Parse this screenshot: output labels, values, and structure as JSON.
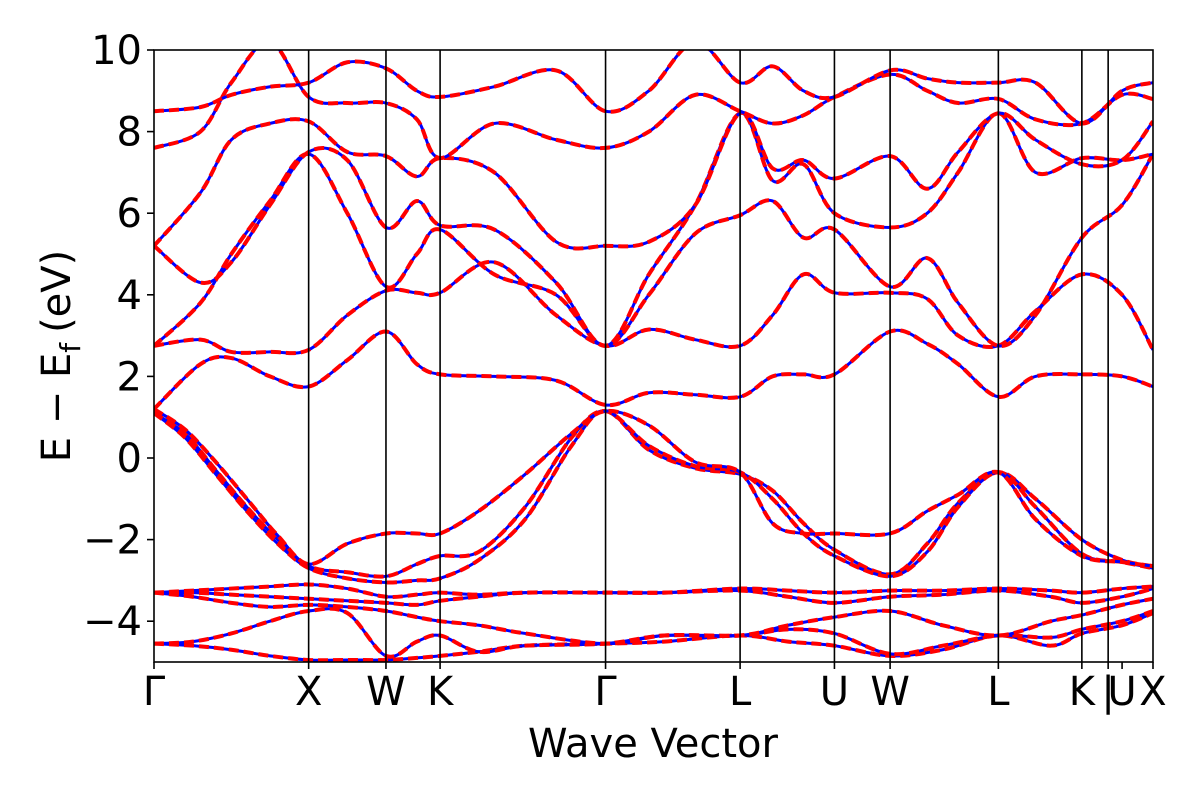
{
  "chart_data": {
    "type": "line",
    "title": "",
    "xlabel": "Wave Vector",
    "ylabel_main": "E − E",
    "ylabel_sub": "f",
    "ylabel_unit": "(eV)",
    "ylim": [
      -5,
      10
    ],
    "yticks": [
      {
        "value": -4,
        "label": "−4"
      },
      {
        "value": -2,
        "label": "−2"
      },
      {
        "value": 0,
        "label": "0"
      },
      {
        "value": 2,
        "label": "2"
      },
      {
        "value": 4,
        "label": "4"
      },
      {
        "value": 6,
        "label": "6"
      },
      {
        "value": 8,
        "label": "8"
      },
      {
        "value": 10,
        "label": "10"
      }
    ],
    "xlim": [
      0,
      10.47
    ],
    "kpoints": [
      {
        "x": 0.0,
        "label": "Γ"
      },
      {
        "x": 1.0,
        "label": "X"
      },
      {
        "x": 1.5,
        "label": "W"
      },
      {
        "x": 1.85,
        "label": "K"
      },
      {
        "x": 2.92,
        "label": "Γ"
      },
      {
        "x": 3.79,
        "label": "L"
      },
      {
        "x": 4.4,
        "label": "U"
      },
      {
        "x": 4.76,
        "label": "W"
      },
      {
        "x": 5.46,
        "label": "L"
      },
      {
        "x": 6.0,
        "label": "K"
      },
      {
        "x": 6.17,
        "label": "|"
      },
      {
        "x": 6.26,
        "label": "U"
      },
      {
        "x": 6.46,
        "label": "X"
      }
    ],
    "grid": false,
    "series_style": {
      "solid_color": "#ff0000",
      "dashed_color": "#0000ff"
    },
    "bands": [
      {
        "x": [
          0,
          0.5,
          1.0,
          1.25,
          1.5,
          1.85,
          2.2,
          2.92,
          3.3,
          3.79,
          4.1,
          4.4,
          4.76,
          5.1,
          5.46,
          5.8,
          6.0,
          6.26,
          6.46
        ],
        "y": [
          -5.1,
          -5.1,
          -5.1,
          -5.1,
          -5.1,
          -5.1,
          -5.1,
          -5.1,
          -5.1,
          -5.1,
          -5.1,
          -5.1,
          -5.1,
          -5.1,
          -5.1,
          -5.1,
          -5.1,
          -5.1,
          -5.1
        ]
      },
      {
        "x": [
          0,
          0.25,
          0.5,
          0.75,
          1.0,
          1.25,
          1.5,
          1.7,
          1.85,
          2.1,
          2.4,
          2.92,
          3.3,
          3.79,
          4.1,
          4.4,
          4.76,
          5.1,
          5.46,
          5.8,
          6.0,
          6.26,
          6.46
        ],
        "y": [
          -4.55,
          -4.6,
          -4.7,
          -4.85,
          -4.95,
          -4.95,
          -4.95,
          -4.9,
          -4.85,
          -4.75,
          -4.6,
          -4.55,
          -4.5,
          -4.35,
          -4.5,
          -4.6,
          -4.85,
          -4.7,
          -4.35,
          -4.6,
          -4.3,
          -4.1,
          -3.8
        ]
      },
      {
        "x": [
          0,
          0.25,
          0.5,
          0.75,
          1.0,
          1.25,
          1.5,
          1.7,
          1.85,
          2.1,
          2.4,
          2.92,
          3.3,
          3.79,
          4.1,
          4.4,
          4.76,
          5.1,
          5.46,
          5.8,
          6.0,
          6.26,
          6.46
        ],
        "y": [
          -4.55,
          -4.5,
          -4.3,
          -4.0,
          -3.75,
          -3.8,
          -4.85,
          -4.5,
          -4.35,
          -4.75,
          -4.6,
          -4.55,
          -4.35,
          -4.35,
          -4.2,
          -4.3,
          -4.8,
          -4.6,
          -4.35,
          -4.4,
          -4.2,
          -4.0,
          -3.75
        ]
      },
      {
        "x": [
          0,
          0.25,
          0.5,
          0.75,
          1.0,
          1.25,
          1.5,
          1.7,
          1.85,
          2.1,
          2.4,
          2.92,
          3.3,
          3.79,
          4.1,
          4.4,
          4.76,
          5.1,
          5.46,
          5.8,
          6.0,
          6.26,
          6.46
        ],
        "y": [
          -3.3,
          -3.4,
          -3.55,
          -3.65,
          -3.6,
          -3.65,
          -3.75,
          -3.9,
          -4.0,
          -4.1,
          -4.3,
          -4.55,
          -4.35,
          -4.35,
          -4.1,
          -3.9,
          -3.75,
          -4.1,
          -4.35,
          -4.0,
          -3.85,
          -3.6,
          -3.45
        ]
      },
      {
        "x": [
          0,
          0.25,
          0.5,
          0.75,
          1.0,
          1.25,
          1.5,
          1.7,
          1.85,
          2.1,
          2.4,
          2.92,
          3.3,
          3.79,
          4.1,
          4.4,
          4.76,
          5.1,
          5.46,
          5.8,
          6.0,
          6.26,
          6.46
        ],
        "y": [
          -3.3,
          -3.3,
          -3.35,
          -3.4,
          -3.45,
          -3.5,
          -3.55,
          -3.6,
          -3.5,
          -3.4,
          -3.3,
          -3.3,
          -3.3,
          -3.25,
          -3.4,
          -3.55,
          -3.4,
          -3.35,
          -3.25,
          -3.4,
          -3.55,
          -3.4,
          -3.2
        ]
      },
      {
        "x": [
          0,
          0.25,
          0.5,
          0.75,
          1.0,
          1.25,
          1.5,
          1.7,
          1.85,
          2.1,
          2.4,
          2.92,
          3.3,
          3.79,
          4.1,
          4.4,
          4.76,
          5.1,
          5.46,
          5.8,
          6.0,
          6.26,
          6.46
        ],
        "y": [
          -3.3,
          -3.25,
          -3.2,
          -3.15,
          -3.1,
          -3.2,
          -3.4,
          -3.35,
          -3.3,
          -3.35,
          -3.3,
          -3.3,
          -3.3,
          -3.2,
          -3.25,
          -3.3,
          -3.25,
          -3.25,
          -3.2,
          -3.25,
          -3.3,
          -3.2,
          -3.15
        ]
      },
      {
        "x": [
          0,
          0.2,
          0.4,
          0.6,
          0.8,
          1.0,
          1.25,
          1.5,
          1.7,
          1.85,
          2.1,
          2.4,
          2.7,
          2.92,
          3.2,
          3.5,
          3.79,
          4.0,
          4.2,
          4.4,
          4.76,
          5.0,
          5.2,
          5.46,
          5.7,
          6.0,
          6.26,
          6.46
        ],
        "y": [
          1.1,
          0.5,
          -0.4,
          -1.3,
          -2.1,
          -2.7,
          -2.95,
          -3.05,
          -3.0,
          -2.95,
          -2.5,
          -1.5,
          0.3,
          1.15,
          0.2,
          -0.25,
          -0.4,
          -0.8,
          -1.6,
          -2.25,
          -2.85,
          -2.1,
          -1.1,
          -0.35,
          -1.0,
          -2.0,
          -2.5,
          -2.65
        ]
      },
      {
        "x": [
          0,
          0.2,
          0.4,
          0.6,
          0.8,
          1.0,
          1.25,
          1.5,
          1.7,
          1.85,
          2.1,
          2.4,
          2.7,
          2.92,
          3.2,
          3.5,
          3.79,
          4.0,
          4.2,
          4.4,
          4.76,
          5.0,
          5.2,
          5.46,
          5.7,
          6.0,
          6.26,
          6.46
        ],
        "y": [
          1.1,
          0.6,
          -0.3,
          -1.2,
          -2.0,
          -2.65,
          -2.8,
          -2.9,
          -2.6,
          -2.4,
          -2.3,
          -1.2,
          0.5,
          1.15,
          0.3,
          -0.2,
          -0.35,
          -1.0,
          -1.85,
          -2.4,
          -2.9,
          -2.3,
          -1.2,
          -0.35,
          -1.2,
          -2.35,
          -2.55,
          -2.7
        ]
      },
      {
        "x": [
          0,
          0.2,
          0.4,
          0.6,
          0.8,
          1.0,
          1.25,
          1.5,
          1.7,
          1.85,
          2.1,
          2.4,
          2.7,
          2.92,
          3.2,
          3.5,
          3.79,
          4.0,
          4.2,
          4.4,
          4.76,
          5.0,
          5.2,
          5.46,
          5.7,
          6.0,
          6.26,
          6.46
        ],
        "y": [
          1.2,
          0.7,
          -0.1,
          -1.0,
          -1.9,
          -2.6,
          -2.1,
          -1.85,
          -1.85,
          -1.85,
          -1.3,
          -0.4,
          0.6,
          1.15,
          0.8,
          -0.1,
          -0.35,
          -1.6,
          -1.85,
          -1.85,
          -1.85,
          -1.3,
          -0.9,
          -0.35,
          -1.5,
          -2.4,
          -2.55,
          -2.65
        ]
      },
      {
        "x": [
          0,
          0.3,
          0.5,
          0.75,
          1.0,
          1.25,
          1.5,
          1.7,
          1.85,
          2.2,
          2.6,
          2.92,
          3.2,
          3.5,
          3.79,
          4.0,
          4.2,
          4.4,
          4.76,
          5.0,
          5.2,
          5.46,
          5.7,
          6.0,
          6.26,
          6.46
        ],
        "y": [
          1.2,
          2.3,
          2.45,
          2.0,
          1.75,
          2.4,
          3.1,
          2.3,
          2.05,
          2.0,
          1.9,
          1.3,
          1.6,
          1.55,
          1.5,
          2.0,
          2.05,
          2.05,
          3.1,
          2.8,
          2.3,
          1.5,
          2.0,
          2.05,
          2.0,
          1.75
        ]
      },
      {
        "x": [
          0,
          0.3,
          0.5,
          0.75,
          1.0,
          1.25,
          1.5,
          1.7,
          1.85,
          2.2,
          2.6,
          2.92,
          3.2,
          3.5,
          3.79,
          4.0,
          4.2,
          4.4,
          4.76,
          5.0,
          5.2,
          5.46,
          5.7,
          6.0,
          6.26,
          6.46
        ],
        "y": [
          2.75,
          2.9,
          2.6,
          2.6,
          2.65,
          3.5,
          4.1,
          4.05,
          4.05,
          4.8,
          3.5,
          2.75,
          3.15,
          2.9,
          2.75,
          3.5,
          4.5,
          4.05,
          4.05,
          3.9,
          3.0,
          2.75,
          3.6,
          4.5,
          4.0,
          2.65
        ]
      },
      {
        "x": [
          0,
          0.3,
          0.5,
          0.75,
          1.0,
          1.25,
          1.5,
          1.7,
          1.85,
          2.2,
          2.6,
          2.92,
          3.2,
          3.5,
          3.79,
          4.0,
          4.2,
          4.4,
          4.76,
          5.0,
          5.2,
          5.46,
          5.7,
          6.0,
          6.26,
          6.46
        ],
        "y": [
          2.75,
          3.8,
          5.0,
          6.3,
          7.45,
          6.0,
          4.2,
          5.0,
          5.6,
          4.5,
          4.0,
          2.75,
          4.0,
          5.5,
          5.95,
          6.3,
          5.4,
          5.6,
          4.2,
          4.9,
          3.8,
          2.75,
          3.5,
          5.4,
          6.2,
          7.45
        ]
      },
      {
        "x": [
          0,
          0.3,
          0.5,
          0.75,
          1.0,
          1.25,
          1.5,
          1.7,
          1.85,
          2.2,
          2.6,
          2.92,
          3.2,
          3.5,
          3.79,
          4.0,
          4.2,
          4.4,
          4.76,
          5.0,
          5.2,
          5.46,
          5.7,
          6.0,
          6.26,
          6.46
        ],
        "y": [
          5.2,
          4.3,
          4.8,
          6.2,
          7.5,
          7.3,
          5.65,
          6.3,
          5.7,
          5.6,
          4.3,
          2.75,
          4.5,
          6.2,
          8.45,
          6.8,
          7.2,
          6.0,
          5.65,
          6.0,
          7.0,
          8.45,
          7.0,
          7.35,
          7.3,
          7.45
        ]
      },
      {
        "x": [
          0,
          0.3,
          0.5,
          0.75,
          1.0,
          1.25,
          1.5,
          1.7,
          1.85,
          2.2,
          2.6,
          2.92,
          3.2,
          3.5,
          3.79,
          4.0,
          4.2,
          4.4,
          4.76,
          5.0,
          5.2,
          5.46,
          5.7,
          6.0,
          6.26,
          6.46
        ],
        "y": [
          5.2,
          6.5,
          7.8,
          8.2,
          8.25,
          7.5,
          7.4,
          6.9,
          7.35,
          7.0,
          5.3,
          5.2,
          5.3,
          6.2,
          8.45,
          7.1,
          7.3,
          6.85,
          7.4,
          6.6,
          7.5,
          8.45,
          7.8,
          7.2,
          7.3,
          8.25
        ]
      },
      {
        "x": [
          0,
          0.3,
          0.5,
          0.75,
          1.0,
          1.25,
          1.5,
          1.7,
          1.85,
          2.2,
          2.6,
          2.92,
          3.2,
          3.5,
          3.79,
          4.0,
          4.2,
          4.4,
          4.76,
          5.0,
          5.2,
          5.46,
          5.7,
          6.0,
          6.26,
          6.46
        ],
        "y": [
          7.6,
          8.0,
          9.2,
          10.2,
          8.85,
          8.7,
          8.7,
          8.3,
          7.35,
          8.2,
          7.8,
          7.6,
          8.0,
          8.9,
          8.5,
          8.2,
          8.4,
          8.85,
          9.4,
          9.0,
          8.7,
          8.8,
          8.3,
          8.2,
          8.9,
          8.8
        ]
      },
      {
        "x": [
          0,
          0.3,
          0.5,
          0.75,
          1.0,
          1.25,
          1.5,
          1.7,
          1.85,
          2.2,
          2.6,
          2.92,
          3.2,
          3.5,
          3.79,
          4.0,
          4.2,
          4.4,
          4.76,
          5.0,
          5.2,
          5.46,
          5.7,
          6.0,
          6.26,
          6.46
        ],
        "y": [
          8.5,
          8.6,
          8.9,
          9.1,
          9.2,
          9.7,
          9.55,
          9.0,
          8.85,
          9.1,
          9.5,
          8.5,
          9.0,
          10.2,
          9.2,
          9.6,
          9.0,
          8.85,
          9.5,
          9.3,
          9.2,
          9.2,
          9.2,
          8.2,
          9.0,
          9.2
        ]
      }
    ]
  }
}
